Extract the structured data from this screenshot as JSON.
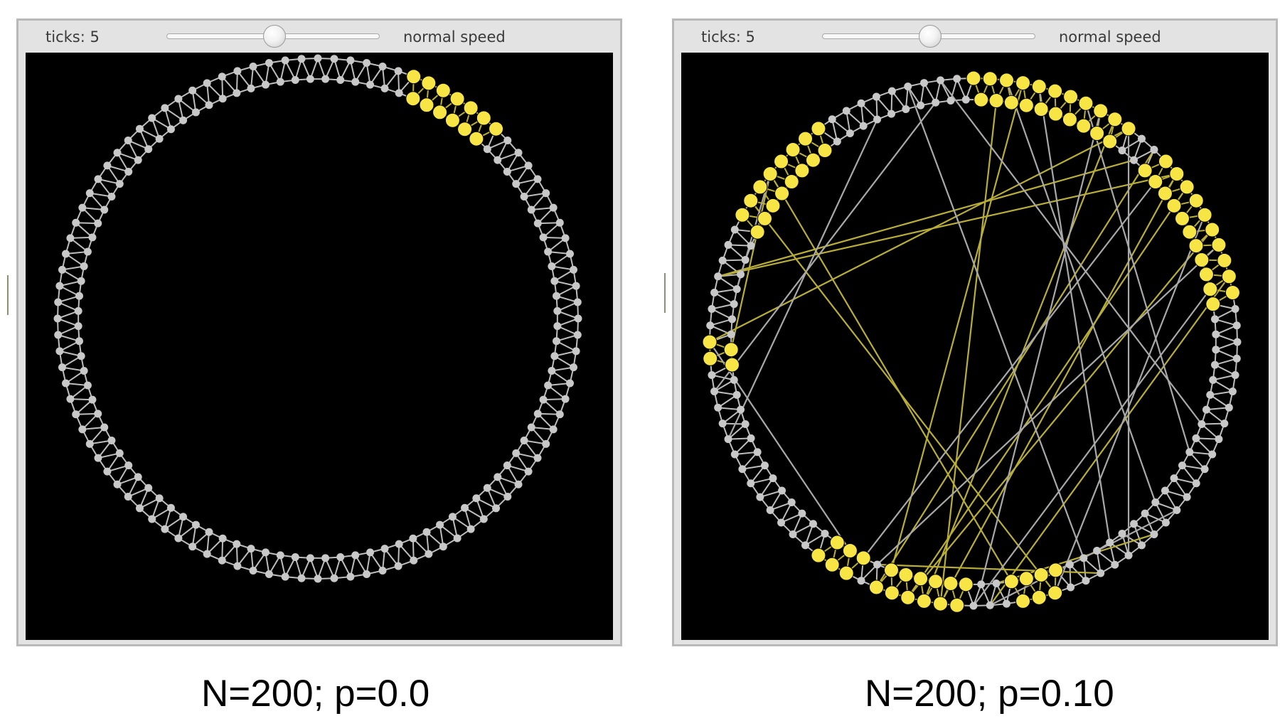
{
  "panels": [
    {
      "ticks_label": "ticks: 5",
      "speed_label": "normal speed",
      "speed_slider_value": 0.5,
      "caption": "N=200; p=0.0",
      "network": {
        "nodes": 200,
        "neighbors_each_side": 2,
        "rewire_probability": 0.0,
        "infected_first": 12,
        "infected_count": 13,
        "infected_runs": [],
        "shortcuts": []
      }
    },
    {
      "ticks_label": "ticks: 5",
      "speed_label": "normal speed",
      "speed_slider_value": 0.5,
      "caption": "N=200; p=0.10",
      "network": {
        "nodes": 200,
        "neighbors_each_side": 2,
        "rewire_probability": 0.1,
        "infected_first": 0,
        "infected_count": 0,
        "infected_runs": [
          [
            165,
            180
          ],
          [
            0,
            20
          ],
          [
            25,
            45
          ],
          [
            89,
            95
          ],
          [
            101,
            112
          ],
          [
            115,
            120
          ],
          [
            147,
            150
          ]
        ],
        "shortcuts": [
          [
            172,
            149,
            "infected"
          ],
          [
            172,
            95,
            "infected"
          ],
          [
            158,
            23,
            "infected"
          ],
          [
            158,
            28,
            "infected"
          ],
          [
            150,
            20,
            "infected"
          ],
          [
            106,
            18,
            "infected"
          ],
          [
            104,
            28,
            "infected"
          ],
          [
            98,
            42,
            "infected"
          ],
          [
            112,
            24,
            "infected"
          ],
          [
            108,
            36,
            "infected"
          ],
          [
            108,
            30,
            "infected"
          ],
          [
            113,
            84,
            "infected"
          ],
          [
            97,
            76,
            "infected"
          ],
          [
            90,
            168,
            "infected"
          ],
          [
            104,
            3,
            "infected"
          ],
          [
            111,
            6,
            "infected"
          ],
          [
            150,
            117,
            "plain"
          ],
          [
            172,
            157,
            "plain"
          ],
          [
            144,
            195,
            "plain"
          ],
          [
            138,
            187,
            "plain"
          ],
          [
            61,
            196,
            "plain"
          ],
          [
            80,
            20,
            "plain"
          ],
          [
            81,
            8,
            "plain"
          ],
          [
            85,
            192,
            "plain"
          ],
          [
            73,
            4,
            "plain"
          ],
          [
            65,
            14,
            "plain"
          ],
          [
            72,
            98,
            "plain"
          ],
          [
            115,
            27,
            "plain"
          ],
          [
            100,
            43,
            "plain"
          ],
          [
            113,
            38,
            "plain"
          ],
          [
            99,
            16,
            "plain"
          ],
          [
            90,
            34,
            "plain"
          ]
        ]
      }
    }
  ],
  "colors": {
    "node": "#c8c8c8",
    "node_edge": "#bdbdbd",
    "infected": "#f6e545",
    "infected_link": "#b9ae37",
    "shortcut": "#a9a9a9",
    "background": "#000000"
  }
}
